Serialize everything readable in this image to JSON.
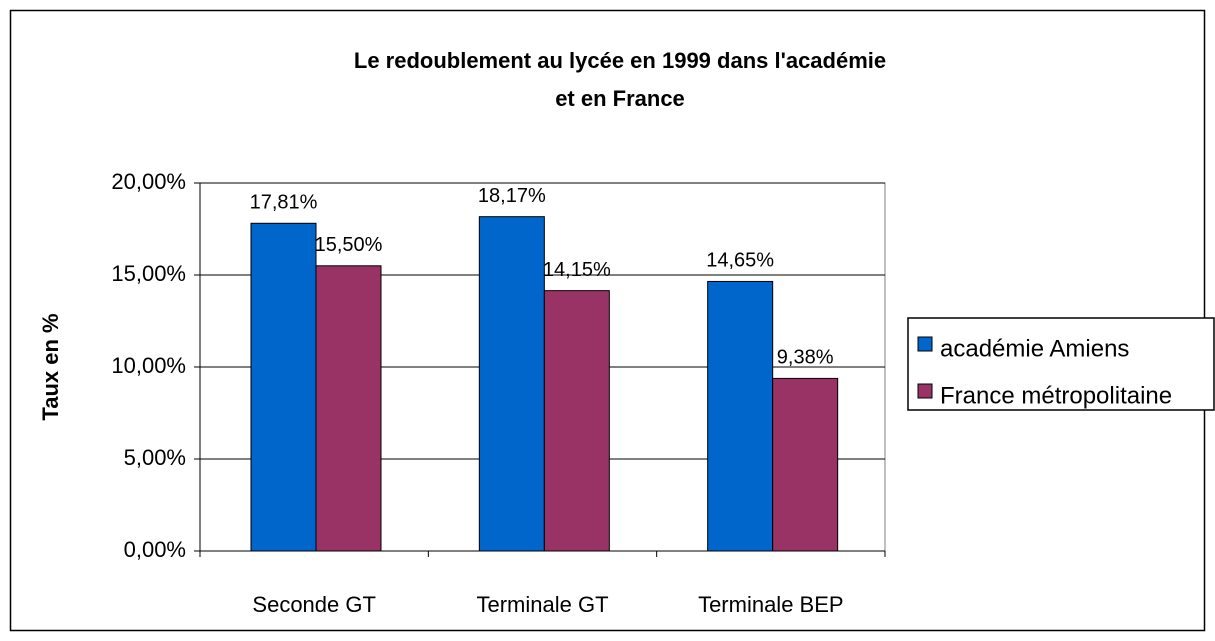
{
  "chart_data": {
    "type": "bar",
    "title": [
      "Le redoublement au lycée en 1999 dans l'académie",
      "et en France"
    ],
    "y_label": "Taux en %",
    "categories": [
      "Seconde GT",
      "Terminale GT",
      "Terminale BEP"
    ],
    "series": [
      {
        "name": "académie Amiens",
        "color": "#0066cc",
        "values": [
          17.81,
          18.17,
          14.65
        ],
        "value_labels": [
          "17,81%",
          "18,17%",
          "14,65%"
        ]
      },
      {
        "name": "France métropolitaine",
        "color": "#993366",
        "values": [
          15.5,
          14.15,
          9.38
        ],
        "value_labels": [
          "15,50%",
          "14,15%",
          "9,38%"
        ]
      }
    ],
    "ylim": [
      0,
      20
    ],
    "yticks": [
      {
        "value": 0,
        "label": "0,00%"
      },
      {
        "value": 5,
        "label": "5,00%"
      },
      {
        "value": 10,
        "label": "10,00%"
      },
      {
        "value": 15,
        "label": "15,00%"
      },
      {
        "value": 20,
        "label": "20,00%"
      }
    ],
    "grid": true,
    "legend": "right"
  }
}
